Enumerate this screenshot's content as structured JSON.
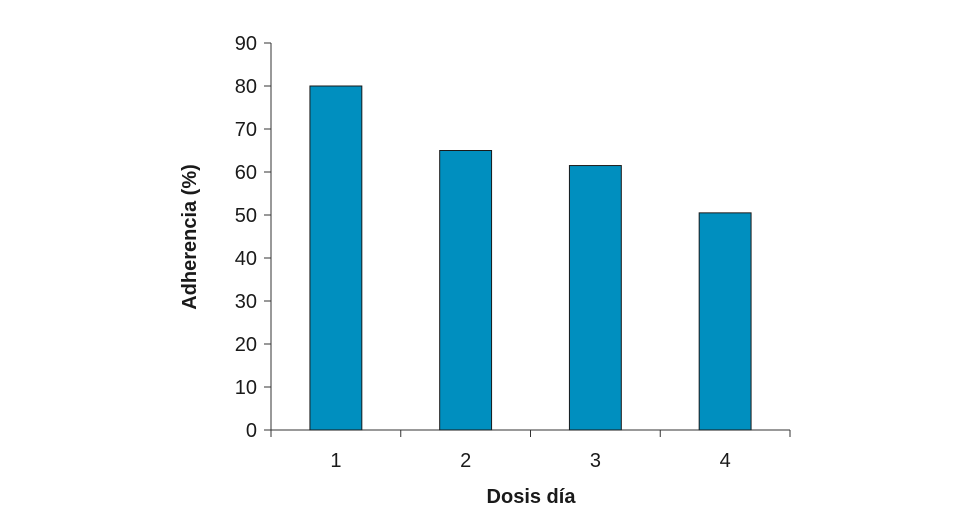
{
  "chart_data": {
    "type": "bar",
    "categories": [
      "1",
      "2",
      "3",
      "4"
    ],
    "values": [
      80,
      65,
      61.5,
      50.5
    ],
    "xlabel": "Dosis día",
    "ylabel": "Adherencia (%)",
    "ylim": [
      0,
      90
    ],
    "yticks": [
      0,
      10,
      20,
      30,
      40,
      50,
      60,
      70,
      80,
      90
    ],
    "grid": false,
    "bar_color": "#008fbf"
  }
}
